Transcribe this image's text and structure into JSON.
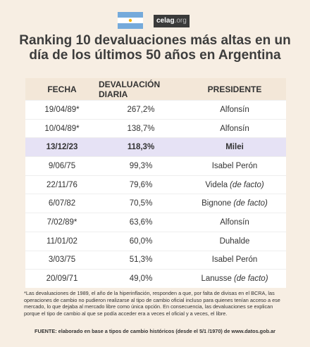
{
  "header": {
    "logo": "celag",
    "logo_suffix": ".org",
    "title": "Ranking 10 devaluaciones más altas en un día de los últimos 50 años en Argentina"
  },
  "table": {
    "columns": [
      "FECHA",
      "DEVALUACIÓN DIARIA",
      "PRESIDENTE"
    ],
    "highlight_row": 2,
    "rows": [
      {
        "fecha": "19/04/89*",
        "devaluacion": "267,2%",
        "presidente": "Alfonsín"
      },
      {
        "fecha": "10/04/89*",
        "devaluacion": "138,7%",
        "presidente": "Alfonsín"
      },
      {
        "fecha": "13/12/23",
        "devaluacion": "118,3%",
        "presidente": "Milei"
      },
      {
        "fecha": "9/06/75",
        "devaluacion": "99,3%",
        "presidente": "Isabel Perón"
      },
      {
        "fecha": "22/11/76",
        "devaluacion": "79,6%",
        "presidente": "Videla",
        "nota": "(de facto)"
      },
      {
        "fecha": "6/07/82",
        "devaluacion": "70,5%",
        "presidente": "Bignone",
        "nota": "(de facto)"
      },
      {
        "fecha": "7/02/89*",
        "devaluacion": "63,6%",
        "presidente": "Alfonsín"
      },
      {
        "fecha": "11/01/02",
        "devaluacion": "60,0%",
        "presidente": "Duhalde"
      },
      {
        "fecha": "3/03/75",
        "devaluacion": "51,3%",
        "presidente": "Isabel Perón"
      },
      {
        "fecha": "20/09/71",
        "devaluacion": "49,0%",
        "presidente": "Lanusse",
        "nota": "(de facto)"
      }
    ]
  },
  "footnote": "*Las devaluaciones de 1989, el año de la hiperinflación, responden a que, por falta de divisas en el BCRA, las operaciones de cambio no pudieron realizarse al tipo de cambio oficial incluso para quienes tenían acceso a ese mercado, lo que dejaba al mercado libre como única opción. En consecuencia, las devaluaciones se explican porque el tipo de cambio al que se podía acceder era a veces el oficial y a veces, el libre.",
  "source": "FUENTE: elaborado en base a tipos de cambio históricos (desde el 5/1 /1970) de www.datos.gob.ar"
}
